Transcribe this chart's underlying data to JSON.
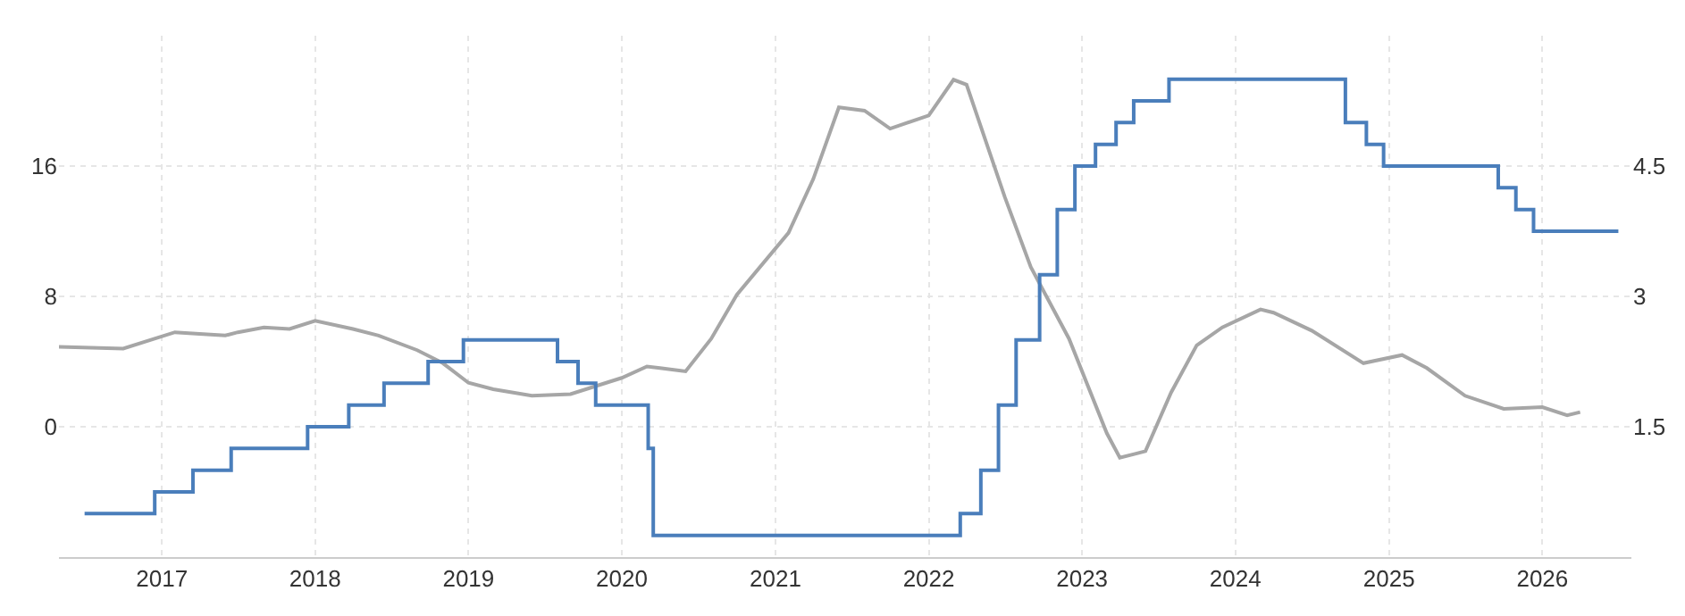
{
  "chart_data": {
    "type": "line",
    "xlim": [
      "2016-05-01",
      "2026-08-01"
    ],
    "xticks": [
      "2017",
      "2018",
      "2019",
      "2020",
      "2021",
      "2022",
      "2023",
      "2024",
      "2025",
      "2026"
    ],
    "ylim": [
      -8,
      24
    ],
    "yticks": [
      0,
      8,
      16
    ],
    "y2lim": [
      0,
      6
    ],
    "y2ticks": [
      1.5,
      3,
      4.5
    ],
    "grid": true,
    "marker": "none",
    "line_style": "solid",
    "series": [
      {
        "axis": "y",
        "color": "#a6a6a6",
        "x": [
          "2016-05",
          "2016-10",
          "2017-02",
          "2017-04",
          "2017-06",
          "2017-07",
          "2017-09",
          "2017-11",
          "2018-01",
          "2018-04",
          "2018-06",
          "2018-09",
          "2018-11",
          "2019-01",
          "2019-03",
          "2019-06",
          "2019-09",
          "2020-01",
          "2020-03",
          "2020-04",
          "2020-06",
          "2020-08",
          "2020-10",
          "2021-02",
          "2021-04",
          "2021-06",
          "2021-08",
          "2021-10",
          "2022-01",
          "2022-03",
          "2022-04",
          "2022-07",
          "2022-09",
          "2022-12",
          "2023-03",
          "2023-04",
          "2023-06",
          "2023-08",
          "2023-10",
          "2023-12",
          "2024-03",
          "2024-04",
          "2024-07",
          "2024-11",
          "2025-02",
          "2025-04",
          "2025-07",
          "2025-10",
          "2026-01",
          "2026-03",
          "2026-04"
        ],
        "values": [
          4.9,
          4.8,
          5.8,
          5.7,
          5.6,
          5.8,
          6.1,
          6.0,
          6.5,
          6.0,
          5.6,
          4.7,
          3.9,
          2.7,
          2.3,
          1.9,
          2.0,
          3.0,
          3.7,
          3.6,
          3.4,
          5.4,
          8.1,
          11.9,
          15.2,
          19.6,
          19.4,
          18.3,
          19.1,
          21.3,
          21.0,
          14.1,
          9.8,
          5.4,
          -0.4,
          -1.9,
          -1.5,
          2.1,
          5.0,
          6.1,
          7.2,
          7.0,
          5.9,
          3.9,
          4.4,
          3.6,
          1.9,
          1.1,
          1.2,
          0.7,
          0.9
        ]
      },
      {
        "type": "step",
        "axis": "y2",
        "color": "#4a7ebb",
        "x": [
          "2016-07-01",
          "2016-12-15",
          "2017-03-16",
          "2017-06-15",
          "2017-12-14",
          "2018-03-22",
          "2018-06-14",
          "2018-09-27",
          "2018-12-20",
          "2019-08-01",
          "2019-09-19",
          "2019-10-31",
          "2020-03-04",
          "2020-03-16",
          "2022-03-17",
          "2022-05-05",
          "2022-06-16",
          "2022-07-28",
          "2022-09-22",
          "2022-11-03",
          "2022-12-15",
          "2023-02-02",
          "2023-03-23",
          "2023-05-04",
          "2023-07-27",
          "2024-09-19",
          "2024-11-08",
          "2024-12-19",
          "2025-09-18",
          "2025-10-30",
          "2025-12-11",
          "2026-07-01"
        ],
        "values": [
          0.5,
          0.75,
          1.0,
          1.25,
          1.5,
          1.75,
          2.0,
          2.25,
          2.5,
          2.25,
          2.0,
          1.75,
          1.25,
          0.25,
          0.5,
          1.0,
          1.75,
          2.5,
          3.25,
          4.0,
          4.5,
          4.75,
          5.0,
          5.25,
          5.5,
          5.0,
          4.75,
          4.5,
          4.25,
          4.0,
          3.75,
          3.75
        ]
      }
    ]
  }
}
